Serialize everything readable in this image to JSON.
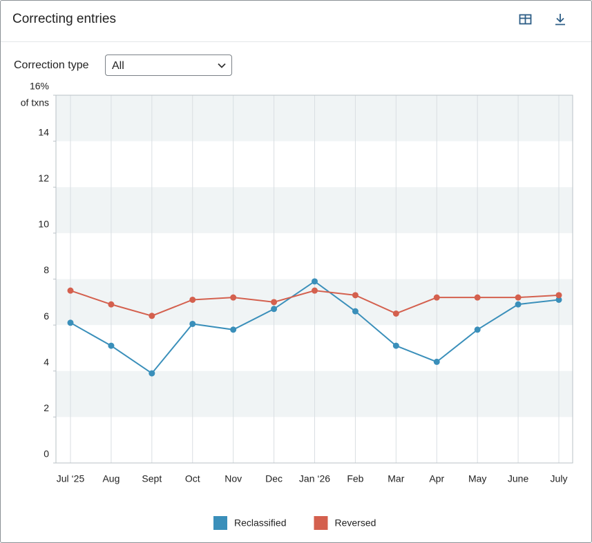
{
  "header": {
    "title": "Correcting entries"
  },
  "filter": {
    "label": "Correction type",
    "value": "All"
  },
  "chart_data": {
    "type": "line",
    "y_label": "of txns",
    "categories": [
      "Jul ‘25",
      "Aug",
      "Sept",
      "Oct",
      "Nov",
      "Dec",
      "Jan ‘26",
      "Feb",
      "Mar",
      "Apr",
      "May",
      "June",
      "July"
    ],
    "series": [
      {
        "name": "Reclassified",
        "color": "#3a8fba",
        "values": [
          6.1,
          5.1,
          3.9,
          6.05,
          5.8,
          6.7,
          7.9,
          6.6,
          5.1,
          4.4,
          5.8,
          6.9,
          7.1
        ]
      },
      {
        "name": "Reversed",
        "color": "#d4604e",
        "values": [
          7.5,
          6.9,
          6.4,
          7.1,
          7.2,
          7.0,
          7.5,
          7.3,
          6.5,
          7.2,
          7.2,
          7.2,
          7.3
        ]
      }
    ],
    "ylim": [
      0,
      16
    ],
    "yticks": [
      0,
      2,
      4,
      6,
      8,
      10,
      12,
      14,
      {
        "value": 16,
        "label": "16%"
      }
    ],
    "grid": true
  }
}
